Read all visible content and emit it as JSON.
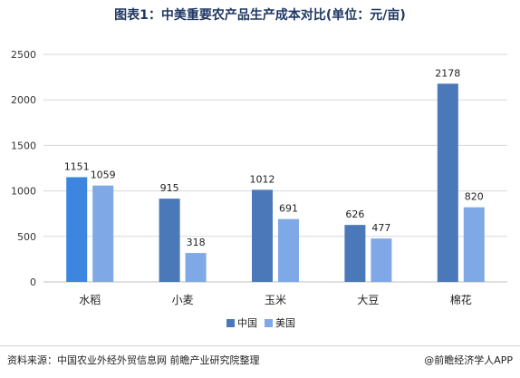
{
  "header": {
    "title": "图表1：中美重要农产品生产成本对比(单位：元/亩)"
  },
  "footer": {
    "source": "资料来源：中国农业外经外贸信息网 前瞻产业研究院整理",
    "credit": "@前瞻经济学人APP"
  },
  "chart_data": {
    "type": "bar",
    "title": "图表1：中美重要农产品生产成本对比(单位：元/亩)",
    "xlabel": "",
    "ylabel": "",
    "categories": [
      "水稻",
      "小麦",
      "玉米",
      "大豆",
      "棉花"
    ],
    "series": [
      {
        "name": "中国",
        "values": [
          1151,
          915,
          1012,
          626,
          2178
        ],
        "color": "#4a78b8"
      },
      {
        "name": "美国",
        "values": [
          1059,
          318,
          691,
          477,
          820
        ],
        "color": "#7ea8e6"
      }
    ],
    "ylim": [
      0,
      2500
    ],
    "yticks": [
      0,
      500,
      1000,
      1500,
      2000,
      2500
    ],
    "grid": true,
    "legend_position": "bottom-center",
    "highlight_color": "#3d86e0"
  }
}
